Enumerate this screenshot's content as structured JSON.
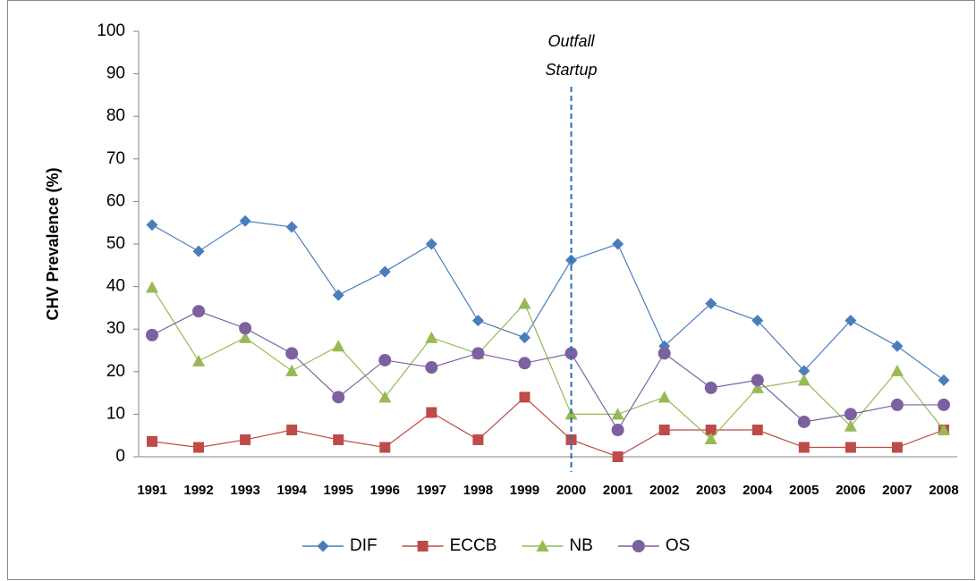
{
  "chart_data": {
    "type": "line",
    "y_label": "CHV Prevalence (%)",
    "categories": [
      "1991",
      "1992",
      "1993",
      "1994",
      "1995",
      "1996",
      "1997",
      "1998",
      "1999",
      "2000",
      "2001",
      "2002",
      "2003",
      "2004",
      "2005",
      "2006",
      "2007",
      "2008"
    ],
    "series": [
      {
        "name": "DIF",
        "color": "#4a7ebb",
        "marker": "diamond",
        "values": [
          54.5,
          48.3,
          55.4,
          54,
          38,
          43.5,
          50,
          32,
          28,
          46.2,
          50,
          26,
          36,
          32,
          20.2,
          32,
          26,
          18
        ]
      },
      {
        "name": "ECCB",
        "color": "#be4b48",
        "marker": "square",
        "values": [
          3.6,
          2.2,
          4,
          6.3,
          4,
          2.2,
          10.4,
          4,
          14,
          4,
          0,
          6.3,
          6.3,
          6.3,
          2.2,
          2.2,
          2.2,
          6.3
        ]
      },
      {
        "name": "NB",
        "color": "#98b954",
        "marker": "triangle",
        "values": [
          39.8,
          22.5,
          28,
          20.2,
          26,
          14,
          28,
          24.2,
          36,
          10,
          10,
          14,
          4.2,
          16.2,
          18,
          7.2,
          20.2,
          6.3
        ]
      },
      {
        "name": "OS",
        "color": "#7d60a0",
        "marker": "circle",
        "values": [
          28.6,
          34.2,
          30.2,
          24.3,
          14,
          22.7,
          21,
          24.3,
          22,
          24.3,
          6.3,
          24.3,
          16.2,
          18,
          8.2,
          10,
          12.2,
          12.2
        ]
      }
    ],
    "ylim": [
      0,
      100
    ],
    "yticks": [
      0,
      10,
      20,
      30,
      40,
      50,
      60,
      70,
      80,
      90,
      100
    ],
    "grid": false,
    "legend": "bottom",
    "annotation": {
      "category": "2000",
      "lines": [
        "Outfall",
        "Startup"
      ],
      "color": "#2e6db4"
    }
  }
}
